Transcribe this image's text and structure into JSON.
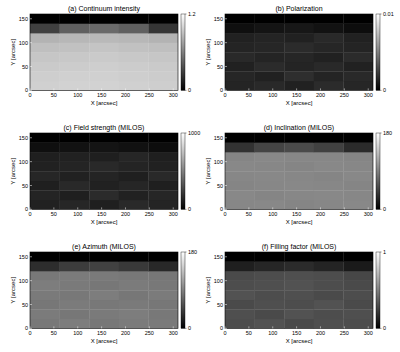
{
  "chart_data": [
    {
      "type": "heatmap",
      "title": "(a) Continuum intensity",
      "x_label": "X [arcsec]",
      "y_label": "Y [arcsec]",
      "xlim": [
        0,
        310
      ],
      "ylim": [
        0,
        160
      ],
      "xticks": [
        0,
        50,
        100,
        150,
        200,
        250,
        300
      ],
      "yticks": [
        0,
        50,
        100,
        150
      ],
      "x_bins": [
        0,
        62,
        124,
        186,
        248,
        310
      ],
      "y_bins": [
        0,
        20,
        40,
        60,
        80,
        100,
        120,
        140,
        160
      ],
      "cells": [
        [
          0.98,
          0.99,
          0.99,
          0.98,
          0.97
        ],
        [
          0.97,
          0.98,
          0.98,
          0.97,
          0.96
        ],
        [
          0.95,
          0.96,
          0.97,
          0.96,
          0.95
        ],
        [
          0.93,
          0.94,
          0.95,
          0.94,
          0.93
        ],
        [
          0.9,
          0.91,
          0.92,
          0.91,
          0.9
        ],
        [
          0.84,
          0.86,
          0.87,
          0.86,
          0.84
        ],
        [
          0.3,
          0.45,
          0.5,
          0.45,
          0.25
        ],
        [
          0,
          0,
          0,
          0,
          0
        ]
      ],
      "clim": [
        0,
        1.2
      ],
      "cticks": [
        0,
        1.2
      ]
    },
    {
      "type": "heatmap",
      "title": "(b) Polarization",
      "x_label": "X [arcsec]",
      "y_label": "Y [arcsec]",
      "xlim": [
        0,
        310
      ],
      "ylim": [
        0,
        160
      ],
      "xticks": [
        0,
        50,
        100,
        150,
        200,
        250,
        300
      ],
      "yticks": [
        0,
        50,
        100,
        150
      ],
      "x_bins": [
        0,
        62,
        124,
        186,
        248,
        310
      ],
      "y_bins": [
        0,
        20,
        40,
        60,
        80,
        100,
        120,
        140,
        160
      ],
      "cells": [
        [
          0.0014,
          0.0016,
          0.0013,
          0.0017,
          0.0015
        ],
        [
          0.0015,
          0.0013,
          0.0018,
          0.0014,
          0.0016
        ],
        [
          0.0013,
          0.0017,
          0.0014,
          0.0016,
          0.0013
        ],
        [
          0.0016,
          0.0014,
          0.0015,
          0.0013,
          0.0017
        ],
        [
          0.0014,
          0.0015,
          0.0017,
          0.0015,
          0.0014
        ],
        [
          0.0013,
          0.0014,
          0.0013,
          0.0016,
          0.0013
        ],
        [
          0.0006,
          0.0008,
          0.0009,
          0.0007,
          0.0005
        ],
        [
          0,
          0,
          0,
          0,
          0
        ]
      ],
      "clim": [
        0,
        0.01
      ],
      "cticks": [
        0,
        0.01
      ]
    },
    {
      "type": "heatmap",
      "title": "(c) Field strength (MILOS)",
      "x_label": "X [arcsec]",
      "y_label": "Y [arcsec]",
      "xlim": [
        0,
        310
      ],
      "ylim": [
        0,
        160
      ],
      "xticks": [
        0,
        50,
        100,
        150,
        200,
        250,
        300
      ],
      "yticks": [
        0,
        50,
        100,
        150
      ],
      "x_bins": [
        0,
        62,
        124,
        186,
        248,
        310
      ],
      "y_bins": [
        0,
        20,
        40,
        60,
        80,
        100,
        120,
        140,
        160
      ],
      "cells": [
        [
          130,
          150,
          120,
          160,
          140
        ],
        [
          140,
          120,
          170,
          130,
          150
        ],
        [
          120,
          160,
          130,
          150,
          120
        ],
        [
          150,
          130,
          140,
          120,
          160
        ],
        [
          130,
          140,
          160,
          140,
          130
        ],
        [
          120,
          130,
          120,
          150,
          120
        ],
        [
          60,
          70,
          80,
          65,
          50
        ],
        [
          0,
          0,
          0,
          0,
          0
        ]
      ],
      "clim": [
        0,
        1000
      ],
      "cticks": [
        0,
        1000
      ]
    },
    {
      "type": "heatmap",
      "title": "(d) Inclination (MILOS)",
      "x_label": "X [arcsec]",
      "y_label": "Y [arcsec]",
      "xlim": [
        0,
        310
      ],
      "ylim": [
        0,
        160
      ],
      "xticks": [
        0,
        50,
        100,
        150,
        200,
        250,
        300
      ],
      "yticks": [
        0,
        50,
        100,
        150
      ],
      "x_bins": [
        0,
        62,
        124,
        186,
        248,
        310
      ],
      "y_bins": [
        0,
        20,
        40,
        60,
        80,
        100,
        120,
        140,
        160
      ],
      "cells": [
        [
          95,
          96,
          94,
          95,
          96
        ],
        [
          96,
          94,
          95,
          96,
          95
        ],
        [
          94,
          95,
          96,
          95,
          94
        ],
        [
          95,
          96,
          95,
          94,
          96
        ],
        [
          96,
          95,
          94,
          96,
          95
        ],
        [
          94,
          96,
          95,
          95,
          94
        ],
        [
          35,
          48,
          52,
          46,
          30
        ],
        [
          0,
          0,
          0,
          0,
          0
        ]
      ],
      "clim": [
        0,
        180
      ],
      "cticks": [
        0,
        180
      ]
    },
    {
      "type": "heatmap",
      "title": "(e) Azimuth (MILOS)",
      "x_label": "X [arcsec]",
      "y_label": "Y [arcsec]",
      "xlim": [
        0,
        310
      ],
      "ylim": [
        0,
        160
      ],
      "xticks": [
        0,
        50,
        100,
        150,
        200,
        250,
        300
      ],
      "yticks": [
        0,
        50,
        100,
        150
      ],
      "x_bins": [
        0,
        62,
        124,
        186,
        248,
        310
      ],
      "y_bins": [
        0,
        20,
        40,
        60,
        80,
        100,
        120,
        140,
        160
      ],
      "cells": [
        [
          85,
          88,
          84,
          87,
          86
        ],
        [
          87,
          84,
          86,
          88,
          85
        ],
        [
          84,
          87,
          85,
          86,
          84
        ],
        [
          86,
          85,
          88,
          84,
          87
        ],
        [
          88,
          86,
          84,
          87,
          85
        ],
        [
          85,
          87,
          86,
          85,
          84
        ],
        [
          32,
          42,
          46,
          40,
          28
        ],
        [
          0,
          0,
          0,
          0,
          0
        ]
      ],
      "clim": [
        0,
        180
      ],
      "cticks": [
        0,
        180
      ]
    },
    {
      "type": "heatmap",
      "title": "(f) Filling factor (MILOS)",
      "x_label": "X [arcsec]",
      "y_label": "Y [arcsec]",
      "xlim": [
        0,
        310
      ],
      "ylim": [
        0,
        160
      ],
      "xticks": [
        0,
        50,
        100,
        150,
        200,
        250,
        300
      ],
      "yticks": [
        0,
        50,
        100,
        150
      ],
      "x_bins": [
        0,
        62,
        124,
        186,
        248,
        310
      ],
      "y_bins": [
        0,
        20,
        40,
        60,
        80,
        100,
        120,
        140,
        160
      ],
      "cells": [
        [
          0.3,
          0.32,
          0.29,
          0.31,
          0.3
        ],
        [
          0.31,
          0.29,
          0.32,
          0.3,
          0.31
        ],
        [
          0.29,
          0.31,
          0.3,
          0.32,
          0.29
        ],
        [
          0.32,
          0.3,
          0.31,
          0.29,
          0.3
        ],
        [
          0.3,
          0.31,
          0.32,
          0.3,
          0.29
        ],
        [
          0.29,
          0.3,
          0.31,
          0.3,
          0.28
        ],
        [
          0.12,
          0.15,
          0.17,
          0.14,
          0.1
        ],
        [
          0,
          0,
          0,
          0,
          0
        ]
      ],
      "clim": [
        0,
        1
      ],
      "cticks": [
        0,
        1
      ]
    }
  ]
}
